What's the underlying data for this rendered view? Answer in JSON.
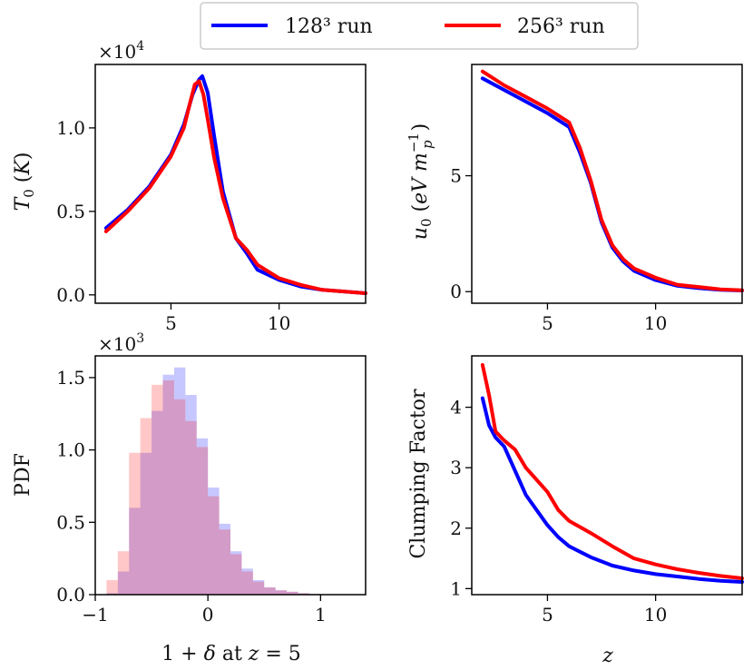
{
  "legend": {
    "placement": "top-center",
    "entries": [
      "128³ run",
      "256³ run"
    ]
  },
  "colors": {
    "series_a": "#0000ff",
    "series_b": "#ff0000",
    "frame": "#000000"
  },
  "chart_data": [
    {
      "panel": "top-left",
      "type": "line",
      "ylabel": "T0 (K)",
      "offset_label": "×10^4",
      "xlim": [
        1.5,
        14.0
      ],
      "ylim": [
        -0.05,
        1.38
      ],
      "xticks": [
        5,
        10
      ],
      "yticks": [
        0.0,
        0.5,
        1.0
      ],
      "xtick_labels": [
        "5",
        "10"
      ],
      "ytick_labels": [
        "0.0",
        "0.5",
        "1.0"
      ],
      "series": [
        {
          "name": "128³ run",
          "x": [
            2.0,
            3.0,
            4.0,
            5.0,
            5.6,
            6.0,
            6.3,
            6.45,
            6.7,
            7.0,
            7.4,
            8.0,
            8.5,
            9.0,
            10.0,
            11.0,
            12.0,
            13.0,
            14.0
          ],
          "y": [
            0.4,
            0.51,
            0.65,
            0.84,
            1.02,
            1.2,
            1.29,
            1.31,
            1.21,
            0.95,
            0.62,
            0.34,
            0.25,
            0.15,
            0.09,
            0.05,
            0.03,
            0.02,
            0.01
          ]
        },
        {
          "name": "256³ run",
          "x": [
            2.0,
            3.0,
            4.0,
            5.0,
            5.6,
            5.9,
            6.1,
            6.3,
            6.5,
            6.7,
            7.0,
            7.4,
            8.0,
            8.5,
            9.0,
            10.0,
            11.0,
            12.0,
            13.0,
            14.0
          ],
          "y": [
            0.38,
            0.5,
            0.64,
            0.83,
            1.0,
            1.16,
            1.26,
            1.28,
            1.2,
            1.05,
            0.82,
            0.58,
            0.34,
            0.27,
            0.18,
            0.1,
            0.06,
            0.03,
            0.02,
            0.01
          ]
        }
      ]
    },
    {
      "panel": "top-right",
      "type": "line",
      "ylabel": "u0 (eV m_p^-1)",
      "xlim": [
        1.5,
        14.0
      ],
      "ylim": [
        -0.5,
        9.8
      ],
      "xticks": [
        5,
        10
      ],
      "yticks": [
        0,
        5
      ],
      "xtick_labels": [
        "5",
        "10"
      ],
      "ytick_labels": [
        "0",
        "5"
      ],
      "series": [
        {
          "name": "128³ run",
          "x": [
            2.0,
            3.0,
            4.0,
            5.0,
            6.0,
            6.5,
            7.0,
            7.5,
            8.0,
            8.5,
            9.0,
            10.0,
            11.0,
            12.0,
            13.0,
            14.0
          ],
          "y": [
            9.2,
            8.7,
            8.2,
            7.7,
            7.1,
            6.0,
            4.7,
            3.0,
            1.9,
            1.3,
            0.9,
            0.5,
            0.25,
            0.15,
            0.08,
            0.05
          ]
        },
        {
          "name": "256³ run",
          "x": [
            2.0,
            3.0,
            4.0,
            5.0,
            6.0,
            6.5,
            7.0,
            7.5,
            8.0,
            8.5,
            9.0,
            10.0,
            11.0,
            12.0,
            13.0,
            14.0
          ],
          "y": [
            9.5,
            8.9,
            8.4,
            7.9,
            7.3,
            6.2,
            4.8,
            3.1,
            2.0,
            1.4,
            1.0,
            0.6,
            0.3,
            0.2,
            0.1,
            0.06
          ]
        }
      ]
    },
    {
      "panel": "bottom-left",
      "type": "histogram",
      "xlabel": "1 + δ at z = 5",
      "ylabel": "PDF",
      "offset_label": "×10^3",
      "xlim": [
        -1.0,
        1.4
      ],
      "ylim": [
        0.0,
        1.65
      ],
      "xticks": [
        -1,
        0,
        1
      ],
      "yticks": [
        0.0,
        0.5,
        1.0,
        1.5
      ],
      "xtick_labels": [
        "−1",
        "0",
        "1"
      ],
      "ytick_labels": [
        "0.0",
        "0.5",
        "1.0",
        "1.5"
      ],
      "bins": [
        -0.9,
        -0.8,
        -0.7,
        -0.6,
        -0.5,
        -0.4,
        -0.3,
        -0.2,
        -0.1,
        0.0,
        0.1,
        0.2,
        0.3,
        0.4,
        0.5,
        0.6,
        0.7,
        0.8,
        0.9,
        1.0,
        1.1,
        1.2
      ],
      "series": [
        {
          "name": "128³ run",
          "values": [
            0.01,
            0.16,
            0.6,
            0.98,
            1.27,
            1.52,
            1.57,
            1.38,
            1.08,
            0.74,
            0.49,
            0.3,
            0.18,
            0.1,
            0.05,
            0.03,
            0.02,
            0.01,
            0.005,
            0.003,
            0.001
          ]
        },
        {
          "name": "256³ run",
          "values": [
            0.1,
            0.3,
            0.98,
            1.22,
            1.45,
            1.48,
            1.35,
            1.2,
            1.02,
            0.68,
            0.45,
            0.28,
            0.16,
            0.09,
            0.05,
            0.03,
            0.02,
            0.01,
            0.005,
            0.003,
            0.001
          ]
        }
      ]
    },
    {
      "panel": "bottom-right",
      "type": "line",
      "xlabel": "z",
      "ylabel": "Clumping Factor",
      "xlim": [
        1.5,
        14.0
      ],
      "ylim": [
        0.9,
        4.85
      ],
      "xticks": [
        5,
        10
      ],
      "yticks": [
        1,
        2,
        3,
        4
      ],
      "xtick_labels": [
        "5",
        "10"
      ],
      "ytick_labels": [
        "1",
        "2",
        "3",
        "4"
      ],
      "series": [
        {
          "name": "128³ run",
          "x": [
            2.0,
            2.3,
            2.6,
            3.0,
            3.5,
            4.0,
            4.5,
            5.0,
            5.5,
            6.0,
            7.0,
            8.0,
            9.0,
            10.0,
            11.0,
            12.0,
            13.0,
            14.0
          ],
          "y": [
            4.15,
            3.7,
            3.5,
            3.35,
            2.95,
            2.55,
            2.3,
            2.05,
            1.85,
            1.7,
            1.52,
            1.38,
            1.3,
            1.24,
            1.2,
            1.16,
            1.13,
            1.11
          ]
        },
        {
          "name": "256³ run",
          "x": [
            2.0,
            2.3,
            2.6,
            3.0,
            3.5,
            4.0,
            4.5,
            5.0,
            5.5,
            6.0,
            7.0,
            8.0,
            9.0,
            10.0,
            11.0,
            12.0,
            13.0,
            14.0
          ],
          "y": [
            4.7,
            4.2,
            3.6,
            3.45,
            3.3,
            3.0,
            2.8,
            2.6,
            2.3,
            2.12,
            1.92,
            1.7,
            1.5,
            1.4,
            1.32,
            1.26,
            1.21,
            1.17
          ]
        }
      ]
    }
  ]
}
